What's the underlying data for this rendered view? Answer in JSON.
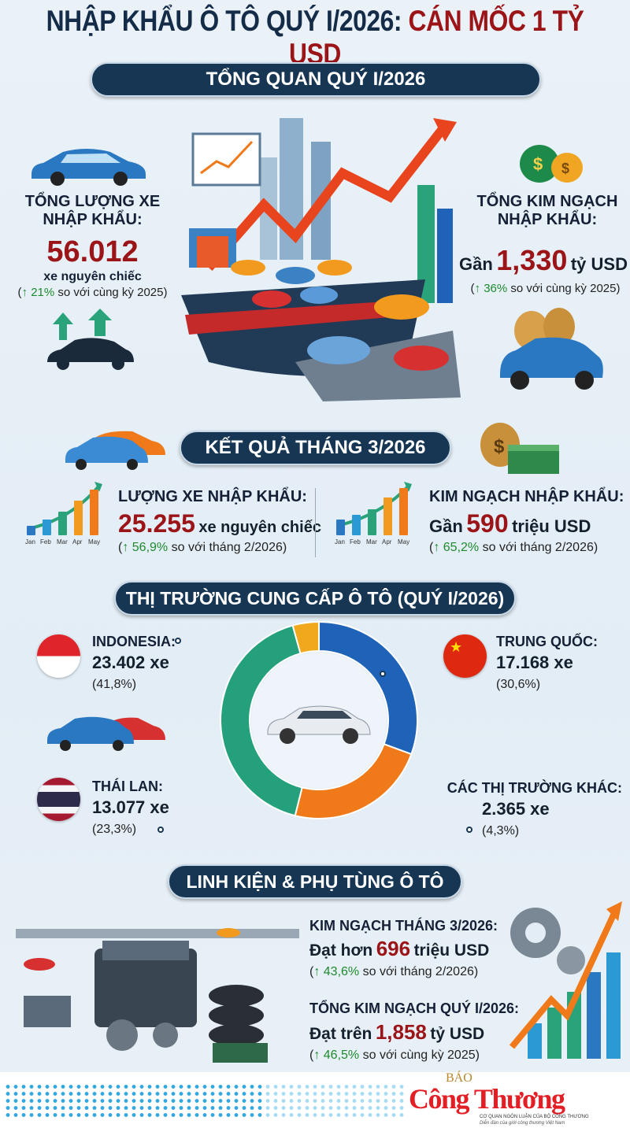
{
  "title": {
    "part1": "NHẬP KHẨU Ô TÔ QUÝ I/2026:",
    "part2": "CÁN MỐC 1 TỶ USD"
  },
  "overview": {
    "heading": "TỔNG QUAN QUÝ I/2026",
    "left": {
      "label": "TỔNG LƯỢNG XE NHẬP KHẨU:",
      "value": "56.012",
      "unit": "xe nguyên chiếc",
      "change_arrow": "↑",
      "change": "21%",
      "change_suffix": "so với cùng kỳ 2025"
    },
    "right": {
      "label": "TỔNG KIM NGẠCH NHẬP KHẨU:",
      "prefix": "Gần",
      "value": "1,330",
      "unit": "tỷ USD",
      "change_arrow": "↑",
      "change": "36%",
      "change_suffix": "so với cùng kỳ 2025"
    }
  },
  "march": {
    "heading": "KẾT QUẢ THÁNG 3/2026",
    "months": [
      "Jan",
      "Feb",
      "Mar",
      "Apr",
      "May"
    ],
    "left": {
      "label": "LƯỢNG XE NHẬP KHẨU:",
      "value": "25.255",
      "unit": "xe nguyên chiếc",
      "change_arrow": "↑",
      "change": "56,9%",
      "change_suffix": "so với tháng 2/2026"
    },
    "right": {
      "label": "KIM NGẠCH NHẬP KHẨU:",
      "prefix": "Gần",
      "value": "590",
      "unit": "triệu USD",
      "change_arrow": "↑",
      "change": "65,2%",
      "change_suffix": "so với tháng 2/2026"
    }
  },
  "markets": {
    "heading": "THỊ TRƯỜNG CUNG CẤP Ô TÔ (QUÝ I/2026)",
    "items": [
      {
        "name": "TRUNG QUỐC:",
        "value": "17.168 xe",
        "share": "(30,6%)",
        "pct": 30.6,
        "color": "#1f63b8"
      },
      {
        "name": "THÁI LAN:",
        "value": "13.077 xe",
        "share": "(23,3%)",
        "pct": 23.3,
        "color": "#f07a1a"
      },
      {
        "name": "INDONESIA:",
        "value": "23.402 xe",
        "share": "(41,8%)",
        "pct": 41.8,
        "color": "#25a07c"
      },
      {
        "name": "CÁC THỊ TRƯỜNG KHÁC:",
        "value": "2.365 xe",
        "share": "(4,3%)",
        "pct": 4.3,
        "color": "#f2a81d"
      }
    ]
  },
  "parts": {
    "heading": "LINH KIỆN & PHỤ TÙNG Ô TÔ",
    "march": {
      "label": "KIM NGẠCH THÁNG 3/2026:",
      "prefix": "Đạt hơn",
      "value": "696",
      "unit": "triệu USD",
      "change_arrow": "↑",
      "change": "43,6%",
      "change_suffix": "so với tháng 2/2026"
    },
    "quarter": {
      "label": "TỔNG KIM NGẠCH QUÝ I/2026:",
      "prefix": "Đạt trên",
      "value": "1,858",
      "unit": "tỷ USD",
      "change_arrow": "↑",
      "change": "46,5%",
      "change_suffix": "so với cùng kỳ 2025"
    }
  },
  "footer": {
    "logo_top": "BÁO",
    "logo_main": "Công Thương",
    "tagline": "CƠ QUAN NGÔN LUẬN CỦA BỘ CÔNG THƯƠNG",
    "subtagline": "Diễn đàn của giới công thương Việt Nam"
  }
}
